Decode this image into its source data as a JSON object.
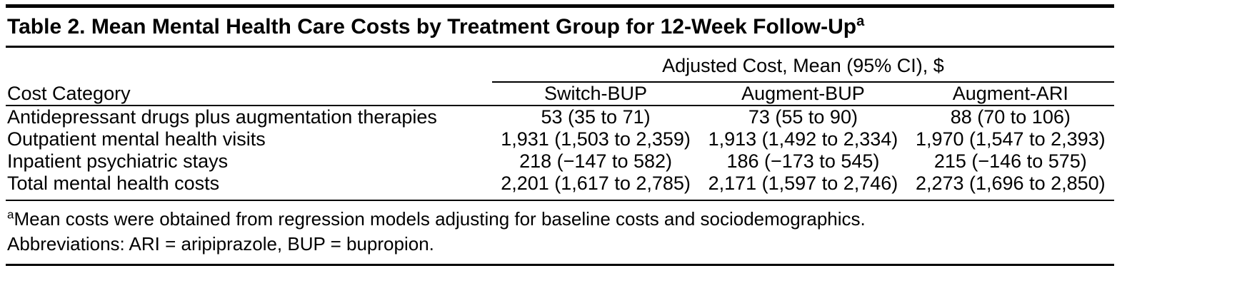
{
  "colors": {
    "text": "#000000",
    "background": "#ffffff",
    "rule": "#000000"
  },
  "table": {
    "title": "Table 2. Mean Mental Health Care Costs by Treatment Group for 12-Week Follow-Up",
    "title_superscript": "a",
    "spanning_header": "Adjusted Cost, Mean (95% CI), $",
    "columns": [
      "Cost Category",
      "Switch-BUP",
      "Augment-BUP",
      "Augment-ARI"
    ],
    "rows": [
      {
        "label": "Antidepressant drugs plus augmentation therapies",
        "values": [
          "53 (35 to 71)",
          "73 (55 to 90)",
          "88 (70 to 106)"
        ]
      },
      {
        "label": "Outpatient mental health visits",
        "values": [
          "1,931 (1,503 to 2,359)",
          "1,913 (1,492 to 2,334)",
          "1,970 (1,547 to 2,393)"
        ]
      },
      {
        "label": "Inpatient psychiatric stays",
        "values": [
          "218 (−147 to 582)",
          "186 (−173 to 545)",
          "215 (−146 to 575)"
        ]
      },
      {
        "label": "Total mental health costs",
        "values": [
          "2,201 (1,617 to 2,785)",
          "2,171 (1,597 to 2,746)",
          "2,273 (1,696 to 2,850)"
        ]
      }
    ],
    "footnotes": [
      {
        "marker": "a",
        "text": "Mean costs were obtained from regression models adjusting for baseline costs and sociodemographics."
      },
      {
        "marker": "",
        "text": "Abbreviations: ARI = aripiprazole, BUP = bupropion."
      }
    ]
  },
  "chart_data": {
    "type": "table",
    "title": "Table 2. Mean Mental Health Care Costs by Treatment Group for 12-Week Follow-Up",
    "spanning_header": "Adjusted Cost, Mean (95% CI), $",
    "columns": [
      "Cost Category",
      "Switch-BUP",
      "Augment-BUP",
      "Augment-ARI"
    ],
    "rows": [
      [
        "Antidepressant drugs plus augmentation therapies",
        "53 (35 to 71)",
        "73 (55 to 90)",
        "88 (70 to 106)"
      ],
      [
        "Outpatient mental health visits",
        "1,931 (1,503 to 2,359)",
        "1,913 (1,492 to 2,334)",
        "1,970 (1,547 to 2,393)"
      ],
      [
        "Inpatient psychiatric stays",
        "218 (−147 to 582)",
        "186 (−173 to 545)",
        "215 (−146 to 575)"
      ],
      [
        "Total mental health costs",
        "2,201 (1,617 to 2,785)",
        "2,171 (1,597 to 2,746)",
        "2,273 (1,696 to 2,850)"
      ]
    ]
  }
}
